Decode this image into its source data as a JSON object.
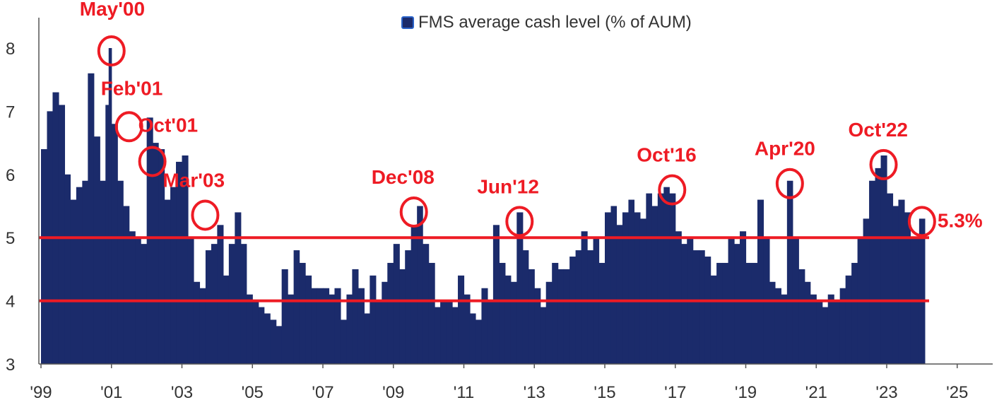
{
  "chart_data": {
    "type": "bar",
    "legend": {
      "label": "FMS average cash level (% of AUM)",
      "placement": "top-center"
    },
    "x_ticks": [
      "'99",
      "'01",
      "'03",
      "'05",
      "'07",
      "'09",
      "'11",
      "'13",
      "'15",
      "'17",
      "'19",
      "'21",
      "'23",
      "'25"
    ],
    "y_ticks": [
      "3",
      "4",
      "5",
      "6",
      "7",
      "8"
    ],
    "xlim": [
      1999.0,
      2026.0
    ],
    "ylim": [
      3,
      8.5
    ],
    "reference_lines": [
      5.0,
      4.0
    ],
    "series": [
      {
        "name": "FMS average cash level (% of AUM)",
        "points": [
          [
            1999.0,
            6.4
          ],
          [
            1999.17,
            7.0
          ],
          [
            1999.33,
            7.3
          ],
          [
            1999.5,
            7.1
          ],
          [
            1999.67,
            6.0
          ],
          [
            1999.83,
            5.6
          ],
          [
            2000.0,
            5.8
          ],
          [
            2000.17,
            5.9
          ],
          [
            2000.33,
            7.6
          ],
          [
            2000.5,
            6.6
          ],
          [
            2000.67,
            5.9
          ],
          [
            2000.83,
            7.1
          ],
          [
            2000.92,
            8.0
          ],
          [
            2001.0,
            6.8
          ],
          [
            2001.17,
            5.9
          ],
          [
            2001.33,
            5.5
          ],
          [
            2001.5,
            5.1
          ],
          [
            2001.67,
            5.0
          ],
          [
            2001.83,
            4.9
          ],
          [
            2002.0,
            6.9
          ],
          [
            2002.17,
            6.5
          ],
          [
            2002.33,
            6.4
          ],
          [
            2002.5,
            5.6
          ],
          [
            2002.67,
            5.8
          ],
          [
            2002.83,
            6.2
          ],
          [
            2003.0,
            6.3
          ],
          [
            2003.17,
            5.0
          ],
          [
            2003.33,
            4.3
          ],
          [
            2003.5,
            4.2
          ],
          [
            2003.67,
            4.8
          ],
          [
            2003.83,
            4.9
          ],
          [
            2004.0,
            5.2
          ],
          [
            2004.17,
            4.4
          ],
          [
            2004.33,
            4.9
          ],
          [
            2004.5,
            5.4
          ],
          [
            2004.67,
            4.9
          ],
          [
            2004.83,
            4.1
          ],
          [
            2005.0,
            4.0
          ],
          [
            2005.17,
            3.9
          ],
          [
            2005.33,
            3.8
          ],
          [
            2005.5,
            3.7
          ],
          [
            2005.67,
            3.6
          ],
          [
            2005.83,
            4.5
          ],
          [
            2006.0,
            4.1
          ],
          [
            2006.17,
            4.8
          ],
          [
            2006.33,
            4.6
          ],
          [
            2006.5,
            4.4
          ],
          [
            2006.67,
            4.2
          ],
          [
            2006.83,
            4.2
          ],
          [
            2007.0,
            4.2
          ],
          [
            2007.17,
            4.1
          ],
          [
            2007.33,
            4.2
          ],
          [
            2007.5,
            3.7
          ],
          [
            2007.67,
            4.1
          ],
          [
            2007.83,
            4.5
          ],
          [
            2008.0,
            4.2
          ],
          [
            2008.17,
            3.8
          ],
          [
            2008.33,
            4.4
          ],
          [
            2008.5,
            4.0
          ],
          [
            2008.67,
            4.3
          ],
          [
            2008.83,
            4.6
          ],
          [
            2009.0,
            4.9
          ],
          [
            2009.17,
            4.5
          ],
          [
            2009.33,
            4.8
          ],
          [
            2009.5,
            5.2
          ],
          [
            2009.67,
            5.5
          ],
          [
            2009.83,
            4.9
          ],
          [
            2010.0,
            4.6
          ],
          [
            2010.17,
            3.9
          ],
          [
            2010.33,
            4.0
          ],
          [
            2010.5,
            4.0
          ],
          [
            2010.67,
            3.9
          ],
          [
            2010.83,
            4.4
          ],
          [
            2011.0,
            4.1
          ],
          [
            2011.17,
            3.8
          ],
          [
            2011.33,
            3.7
          ],
          [
            2011.5,
            4.2
          ],
          [
            2011.67,
            4.0
          ],
          [
            2011.83,
            5.2
          ],
          [
            2012.0,
            4.6
          ],
          [
            2012.17,
            4.4
          ],
          [
            2012.33,
            4.3
          ],
          [
            2012.5,
            5.4
          ],
          [
            2012.67,
            4.8
          ],
          [
            2012.83,
            4.5
          ],
          [
            2013.0,
            4.2
          ],
          [
            2013.17,
            3.9
          ],
          [
            2013.33,
            4.3
          ],
          [
            2013.5,
            4.6
          ],
          [
            2013.67,
            4.5
          ],
          [
            2013.83,
            4.5
          ],
          [
            2014.0,
            4.7
          ],
          [
            2014.17,
            4.8
          ],
          [
            2014.33,
            5.1
          ],
          [
            2014.5,
            4.8
          ],
          [
            2014.67,
            5.0
          ],
          [
            2014.83,
            4.6
          ],
          [
            2015.0,
            5.4
          ],
          [
            2015.17,
            5.5
          ],
          [
            2015.33,
            5.2
          ],
          [
            2015.5,
            5.4
          ],
          [
            2015.67,
            5.6
          ],
          [
            2015.83,
            5.4
          ],
          [
            2016.0,
            5.3
          ],
          [
            2016.17,
            5.7
          ],
          [
            2016.33,
            5.5
          ],
          [
            2016.5,
            5.7
          ],
          [
            2016.67,
            5.8
          ],
          [
            2016.83,
            5.7
          ],
          [
            2017.0,
            5.1
          ],
          [
            2017.17,
            4.9
          ],
          [
            2017.33,
            5.0
          ],
          [
            2017.5,
            4.8
          ],
          [
            2017.67,
            4.8
          ],
          [
            2017.83,
            4.7
          ],
          [
            2018.0,
            4.4
          ],
          [
            2018.17,
            4.6
          ],
          [
            2018.33,
            4.6
          ],
          [
            2018.5,
            5.0
          ],
          [
            2018.67,
            4.9
          ],
          [
            2018.83,
            5.1
          ],
          [
            2019.0,
            4.6
          ],
          [
            2019.17,
            4.6
          ],
          [
            2019.33,
            5.6
          ],
          [
            2019.5,
            5.0
          ],
          [
            2019.67,
            4.3
          ],
          [
            2019.83,
            4.2
          ],
          [
            2020.0,
            4.1
          ],
          [
            2020.17,
            5.9
          ],
          [
            2020.33,
            5.0
          ],
          [
            2020.5,
            4.5
          ],
          [
            2020.67,
            4.3
          ],
          [
            2020.83,
            4.1
          ],
          [
            2021.0,
            4.0
          ],
          [
            2021.17,
            3.9
          ],
          [
            2021.33,
            4.1
          ],
          [
            2021.5,
            4.0
          ],
          [
            2021.67,
            4.2
          ],
          [
            2021.83,
            4.4
          ],
          [
            2022.0,
            4.6
          ],
          [
            2022.17,
            5.0
          ],
          [
            2022.33,
            5.3
          ],
          [
            2022.5,
            5.9
          ],
          [
            2022.67,
            6.1
          ],
          [
            2022.83,
            6.3
          ],
          [
            2023.0,
            5.7
          ],
          [
            2023.17,
            5.5
          ],
          [
            2023.33,
            5.6
          ],
          [
            2023.5,
            5.4
          ],
          [
            2023.67,
            5.0
          ],
          [
            2023.83,
            5.0
          ],
          [
            2023.92,
            5.3
          ]
        ]
      }
    ],
    "annotations": [
      {
        "label": "May'00",
        "x": 2000.92,
        "y": 8.0
      },
      {
        "label": "Feb'01",
        "x": 2001.42,
        "y": 6.8
      },
      {
        "label": "Oct'01",
        "x": 2002.08,
        "y": 6.25
      },
      {
        "label": "Mar'03",
        "x": 2003.58,
        "y": 5.4
      },
      {
        "label": "Dec'08",
        "x": 2009.5,
        "y": 5.45
      },
      {
        "label": "Jun'12",
        "x": 2012.5,
        "y": 5.3
      },
      {
        "label": "Oct'16",
        "x": 2016.83,
        "y": 5.8
      },
      {
        "label": "Apr'20",
        "x": 2020.17,
        "y": 5.9
      },
      {
        "label": "Oct'22",
        "x": 2022.83,
        "y": 6.2
      },
      {
        "label": "5.3%",
        "x": 2023.92,
        "y": 5.3
      }
    ],
    "colors": {
      "bar": "#1b2b6b",
      "annotation": "#ee1b24",
      "reference_line": "#ee1b24",
      "axis": "#555555"
    }
  }
}
